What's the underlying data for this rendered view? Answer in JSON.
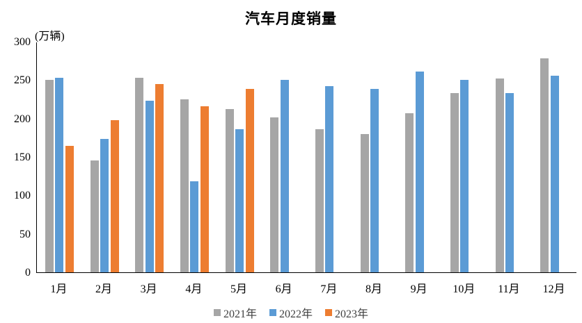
{
  "title": "汽车月度销量",
  "unit_label": "(万辆)",
  "chart_data": {
    "type": "bar",
    "title": "汽车月度销量",
    "ylabel": "(万辆)",
    "xlabel": "",
    "ylim": [
      0,
      300
    ],
    "yticks": [
      0,
      50,
      100,
      150,
      200,
      250,
      300
    ],
    "grid": false,
    "legend_position": "bottom",
    "categories": [
      "1月",
      "2月",
      "3月",
      "4月",
      "5月",
      "6月",
      "7月",
      "8月",
      "9月",
      "10月",
      "11月",
      "12月"
    ],
    "series": [
      {
        "name": "2021年",
        "color": "#A6A6A6",
        "values": [
          250.3,
          145.5,
          252.6,
          225.2,
          212.8,
          201.5,
          186.4,
          179.9,
          206.7,
          233.3,
          252.2,
          278.6
        ]
      },
      {
        "name": "2022年",
        "color": "#5B9BD5",
        "values": [
          253.1,
          173.7,
          223.4,
          118.1,
          186.2,
          250.2,
          242.0,
          238.3,
          261.0,
          250.5,
          232.8,
          255.6
        ]
      },
      {
        "name": "2023年",
        "color": "#ED7D31",
        "values": [
          164.9,
          197.6,
          245.1,
          215.9,
          238.2,
          null,
          null,
          null,
          null,
          null,
          null,
          null
        ]
      }
    ]
  }
}
